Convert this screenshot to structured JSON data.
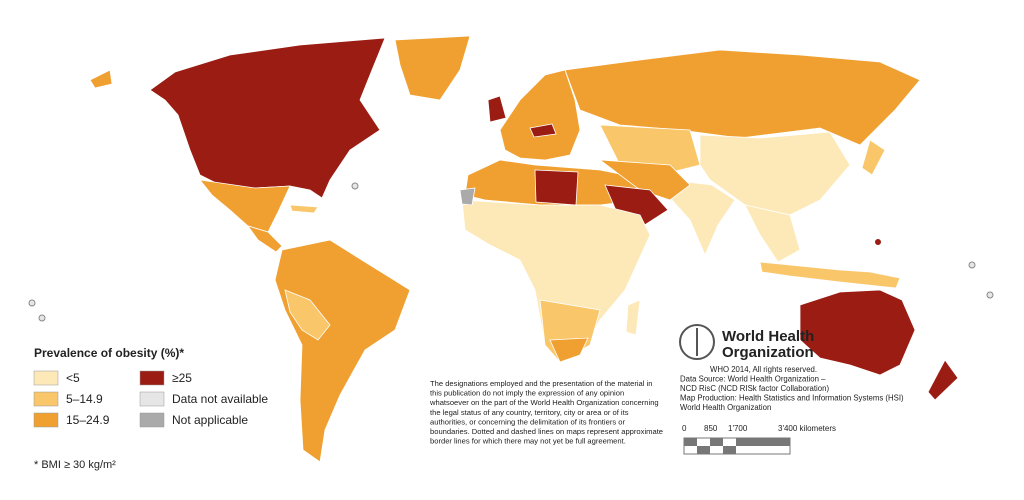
{
  "legend": {
    "title": "Prevalence of obesity (%)*",
    "items": [
      {
        "label": "<5",
        "color": "#fde9b8"
      },
      {
        "label": "5–14.9",
        "color": "#f9c66a"
      },
      {
        "label": "15–24.9",
        "color": "#f0a030"
      },
      {
        "label": "≥25",
        "color": "#9b1c13"
      },
      {
        "label": "Data not available",
        "color": "#e6e6e6"
      },
      {
        "label": "Not applicable",
        "color": "#aaaaaa"
      }
    ]
  },
  "footnote": "* BMI ≥ 30 kg/m²",
  "disclaimer": [
    "The designations employed and the presentation of the material in",
    "this publication do not imply the expression of any opinion",
    "whatsoever on the part of the World Health Organization concerning",
    "the legal status of any country, territory, city or area or of its",
    "authorities, or concerning the delimitation of its frontiers or",
    "boundaries. Dotted and dashed lines on maps represent approximate",
    "border lines for which there may not yet be full agreement."
  ],
  "logo": [
    "World Health",
    "Organization"
  ],
  "credits": [
    "WHO 2014, All rights reserved.",
    "Data Source: World Health Organization –",
    "NCD RisC (NCD RISk factor Collaboration)",
    "Map Production: Health Statistics and Information Systems (HSI)",
    "World Health Organization"
  ],
  "scale": {
    "labels": [
      "0",
      "850",
      "1'700",
      "3'400 kilometers"
    ]
  }
}
